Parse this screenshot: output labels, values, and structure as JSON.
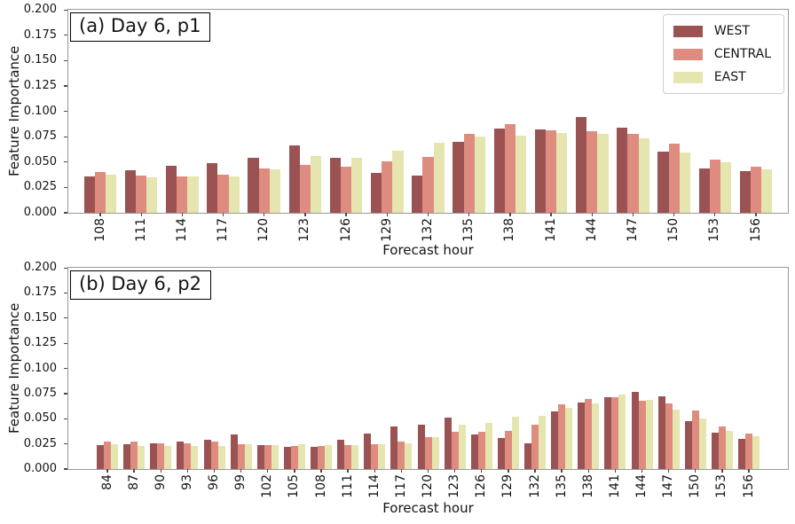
{
  "figure": {
    "background": "#ffffff",
    "spine_color": "#9a9a9a",
    "tick_color": "#4a4a4a",
    "text_color": "#141414"
  },
  "chart_data": [
    {
      "type": "bar",
      "title": "(a) Day 6, p1",
      "xlabel": "Forecast hour",
      "ylabel": "Feature Importance",
      "ylim": [
        0,
        0.2
      ],
      "ytick_step": 0.025,
      "yticks": [
        "0.000",
        "0.025",
        "0.050",
        "0.075",
        "0.100",
        "0.125",
        "0.150",
        "0.175",
        "0.200"
      ],
      "grid": false,
      "legend_position": "upper right",
      "categories": [
        "108",
        "111",
        "114",
        "117",
        "120",
        "123",
        "126",
        "129",
        "132",
        "135",
        "138",
        "141",
        "144",
        "147",
        "150",
        "153",
        "156"
      ],
      "series": [
        {
          "name": "WEST",
          "color": "#9a5253",
          "values": [
            0.036,
            0.042,
            0.046,
            0.049,
            0.054,
            0.066,
            0.054,
            0.039,
            0.037,
            0.07,
            0.083,
            0.082,
            0.094,
            0.084,
            0.06,
            0.044,
            0.041
          ]
        },
        {
          "name": "CENTRAL",
          "color": "#df8c80",
          "values": [
            0.04,
            0.037,
            0.036,
            0.038,
            0.044,
            0.047,
            0.045,
            0.051,
            0.055,
            0.078,
            0.087,
            0.081,
            0.08,
            0.078,
            0.068,
            0.052,
            0.045
          ]
        },
        {
          "name": "EAST",
          "color": "#e5e5af",
          "values": [
            0.038,
            0.035,
            0.036,
            0.036,
            0.043,
            0.056,
            0.054,
            0.061,
            0.069,
            0.075,
            0.076,
            0.079,
            0.078,
            0.073,
            0.059,
            0.05,
            0.043
          ]
        }
      ]
    },
    {
      "type": "bar",
      "title": "(b) Day 6, p2",
      "xlabel": "Forecast hour",
      "ylabel": "Feature Importance",
      "ylim": [
        0,
        0.2
      ],
      "ytick_step": 0.025,
      "yticks": [
        "0.000",
        "0.025",
        "0.050",
        "0.075",
        "0.100",
        "0.125",
        "0.150",
        "0.175",
        "0.200"
      ],
      "grid": false,
      "legend_position": "none",
      "categories": [
        "84",
        "87",
        "90",
        "93",
        "96",
        "99",
        "102",
        "105",
        "108",
        "111",
        "114",
        "117",
        "120",
        "123",
        "126",
        "129",
        "132",
        "135",
        "138",
        "141",
        "144",
        "147",
        "150",
        "153",
        "156"
      ],
      "series": [
        {
          "name": "WEST",
          "color": "#9a5253",
          "values": [
            0.024,
            0.025,
            0.026,
            0.027,
            0.029,
            0.034,
            0.024,
            0.022,
            0.022,
            0.029,
            0.035,
            0.042,
            0.044,
            0.051,
            0.034,
            0.031,
            0.026,
            0.057,
            0.066,
            0.071,
            0.077,
            0.072,
            0.048,
            0.036,
            0.03
          ]
        },
        {
          "name": "CENTRAL",
          "color": "#df8c80",
          "values": [
            0.027,
            0.027,
            0.026,
            0.026,
            0.027,
            0.025,
            0.024,
            0.023,
            0.023,
            0.024,
            0.025,
            0.027,
            0.032,
            0.037,
            0.037,
            0.038,
            0.044,
            0.064,
            0.07,
            0.071,
            0.068,
            0.065,
            0.058,
            0.042,
            0.035
          ]
        },
        {
          "name": "EAST",
          "color": "#e5e5af",
          "values": [
            0.025,
            0.023,
            0.023,
            0.023,
            0.023,
            0.025,
            0.024,
            0.025,
            0.024,
            0.024,
            0.025,
            0.026,
            0.032,
            0.044,
            0.046,
            0.052,
            0.053,
            0.061,
            0.065,
            0.074,
            0.069,
            0.059,
            0.05,
            0.038,
            0.033
          ]
        }
      ]
    }
  ]
}
